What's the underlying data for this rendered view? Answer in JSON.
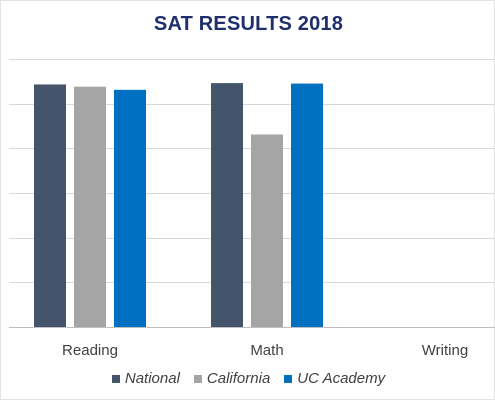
{
  "chart_data": {
    "type": "bar",
    "title": "SAT RESULTS 2018",
    "xlabel": "",
    "ylabel": "",
    "categories": [
      "Reading",
      "Math",
      "Writing"
    ],
    "series": [
      {
        "name": "National",
        "color": "#44546a",
        "values": [
          543,
          546,
          null
        ]
      },
      {
        "name": "California",
        "color": "#a5a5a5",
        "values": [
          538,
          431,
          null
        ]
      },
      {
        "name": "UC Academy",
        "color": "#0070c0",
        "values": [
          531,
          545,
          null
        ]
      }
    ],
    "ylim": [
      0,
      600
    ],
    "y_ticks": [
      0,
      100,
      200,
      300,
      400,
      500,
      600
    ],
    "y_tick_labels_visible": false,
    "grid": true,
    "legend_position": "bottom"
  }
}
